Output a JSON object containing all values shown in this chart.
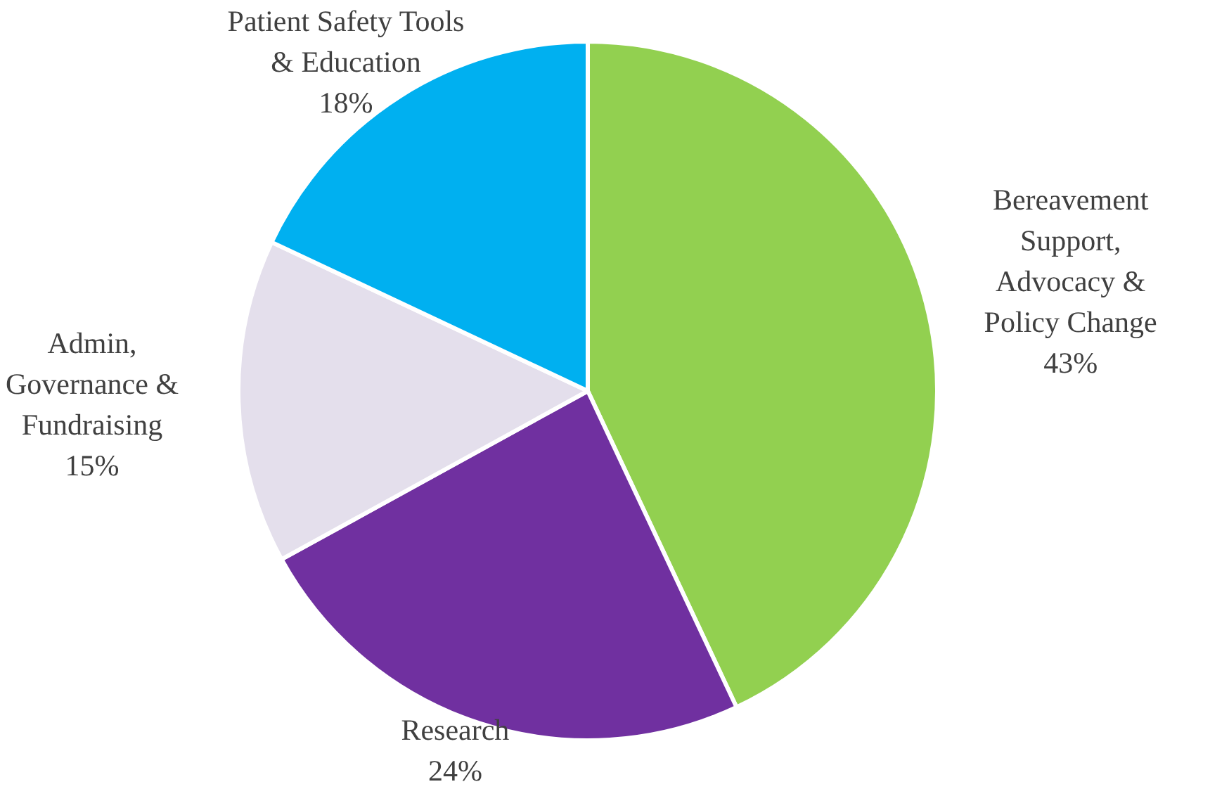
{
  "chart_data": {
    "type": "pie",
    "categories": [
      "Bereavement Support, Advocacy & Policy Change",
      "Research",
      "Admin, Governance & Fundraising",
      "Patient Safety Tools & Education"
    ],
    "values": [
      43,
      24,
      15,
      18
    ],
    "colors": [
      "#92d050",
      "#7030a0",
      "#e4dfec",
      "#00b0f0"
    ],
    "value_labels": [
      "43%",
      "24%",
      "15%",
      "18%"
    ],
    "legend": false
  }
}
